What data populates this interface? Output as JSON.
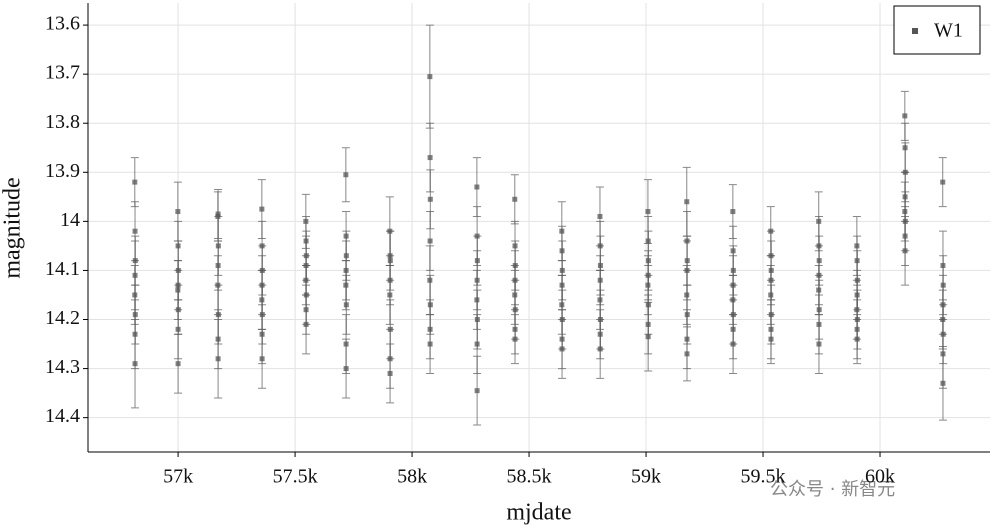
{
  "chart_data": {
    "type": "scatter",
    "x_label": "mjdate",
    "y_label": "magnitude",
    "xlim": [
      56615,
      60470
    ],
    "ylim": [
      13.555,
      14.47
    ],
    "y_inverted": true,
    "grid": true,
    "legend": "upper right",
    "xticks": [
      {
        "value": 57000,
        "label": "57k"
      },
      {
        "value": 57500,
        "label": "57.5k"
      },
      {
        "value": 58000,
        "label": "58k"
      },
      {
        "value": 58500,
        "label": "58.5k"
      },
      {
        "value": 59000,
        "label": "59k"
      },
      {
        "value": 59500,
        "label": "59.5k"
      },
      {
        "value": 60000,
        "label": "60k"
      }
    ],
    "yticks": [
      13.6,
      13.7,
      13.8,
      13.9,
      14,
      14.1,
      14.2,
      14.3,
      14.4
    ],
    "series": [
      {
        "name": "W1",
        "color": "#555555",
        "x": [
          56815,
          56816,
          56817,
          56816,
          56815,
          56817,
          56816,
          56816,
          56999,
          57000,
          57001,
          57000,
          56999,
          57001,
          57000,
          57000,
          57170,
          57171,
          57172,
          57171,
          57170,
          57172,
          57171,
          57171,
          57358,
          57359,
          57360,
          57359,
          57358,
          57360,
          57359,
          57359,
          57546,
          57547,
          57548,
          57547,
          57546,
          57548,
          57547,
          57547,
          57717,
          57718,
          57719,
          57718,
          57717,
          57719,
          57718,
          57718,
          57905,
          57906,
          57907,
          57906,
          57905,
          57907,
          57906,
          57906,
          58076,
          58077,
          58078,
          58077,
          58076,
          58078,
          58077,
          58077,
          58277,
          58278,
          58279,
          58278,
          58277,
          58279,
          58278,
          58278,
          58439,
          58440,
          58441,
          58440,
          58439,
          58441,
          58440,
          58440,
          58640,
          58641,
          58642,
          58641,
          58640,
          58642,
          58641,
          58641,
          58803,
          58804,
          58805,
          58804,
          58803,
          58805,
          58804,
          58804,
          59008,
          59009,
          59010,
          59009,
          59008,
          59010,
          59009,
          59009,
          59174,
          59175,
          59176,
          59175,
          59174,
          59176,
          59175,
          59175,
          59371,
          59372,
          59373,
          59372,
          59371,
          59373,
          59372,
          59372,
          59533,
          59534,
          59535,
          59534,
          59533,
          59535,
          59534,
          59534,
          59738,
          59739,
          59740,
          59739,
          59738,
          59740,
          59739,
          59739,
          59901,
          59902,
          59903,
          59902,
          59901,
          59903,
          59902,
          59902,
          60106,
          60107,
          60108,
          60107,
          60106,
          60108,
          60107,
          60107,
          60268,
          60269,
          60270,
          60269,
          60268,
          60270,
          60269,
          60269
        ],
        "values": [
          13.92,
          14.02,
          14.08,
          14.11,
          14.15,
          14.19,
          14.23,
          14.29,
          13.98,
          14.05,
          14.1,
          14.13,
          14.14,
          14.18,
          14.22,
          14.29,
          13.99,
          13.985,
          14.05,
          14.09,
          14.13,
          14.19,
          14.24,
          14.28,
          13.975,
          14.05,
          14.1,
          14.13,
          14.16,
          14.19,
          14.23,
          14.28,
          14.0,
          14.04,
          14.07,
          14.09,
          14.12,
          14.15,
          14.18,
          14.21,
          13.905,
          14.03,
          14.07,
          14.1,
          14.13,
          14.17,
          14.25,
          14.3,
          14.02,
          14.07,
          14.08,
          14.12,
          14.15,
          14.22,
          14.28,
          14.31,
          13.705,
          13.87,
          13.955,
          14.04,
          14.12,
          14.17,
          14.22,
          14.25,
          13.93,
          14.03,
          14.08,
          14.12,
          14.16,
          14.2,
          14.25,
          14.345,
          13.955,
          14.05,
          14.09,
          14.12,
          14.15,
          14.18,
          14.22,
          14.24,
          14.02,
          14.06,
          14.1,
          14.13,
          14.17,
          14.2,
          14.24,
          14.26,
          13.99,
          14.05,
          14.09,
          14.12,
          14.16,
          14.2,
          14.23,
          14.26,
          13.98,
          14.04,
          14.08,
          14.11,
          14.13,
          14.17,
          14.21,
          14.235,
          13.96,
          14.04,
          14.08,
          14.1,
          14.15,
          14.19,
          14.24,
          14.27,
          13.98,
          14.06,
          14.1,
          14.13,
          14.16,
          14.19,
          14.22,
          14.25,
          14.02,
          14.07,
          14.1,
          14.12,
          14.15,
          14.19,
          14.22,
          14.24,
          14.0,
          14.05,
          14.08,
          14.11,
          14.14,
          14.18,
          14.21,
          14.25,
          14.05,
          14.08,
          14.12,
          14.15,
          14.18,
          14.2,
          14.22,
          14.24,
          13.785,
          13.85,
          13.9,
          13.95,
          13.98,
          14.0,
          14.03,
          14.06,
          13.92,
          14.09,
          14.13,
          14.17,
          14.2,
          14.23,
          14.27,
          14.33
        ],
        "errors": [
          0.05,
          0.06,
          0.05,
          0.07,
          0.06,
          0.06,
          0.07,
          0.09,
          0.06,
          0.05,
          0.06,
          0.05,
          0.06,
          0.05,
          0.06,
          0.06,
          0.05,
          0.05,
          0.06,
          0.05,
          0.06,
          0.06,
          0.06,
          0.08,
          0.06,
          0.05,
          0.05,
          0.06,
          0.06,
          0.06,
          0.06,
          0.06,
          0.055,
          0.05,
          0.05,
          0.06,
          0.05,
          0.06,
          0.05,
          0.06,
          0.055,
          0.05,
          0.05,
          0.06,
          0.05,
          0.06,
          0.06,
          0.06,
          0.07,
          0.05,
          0.06,
          0.05,
          0.06,
          0.06,
          0.06,
          0.06,
          0.105,
          0.07,
          0.06,
          0.06,
          0.07,
          0.06,
          0.06,
          0.06,
          0.06,
          0.06,
          0.05,
          0.06,
          0.06,
          0.06,
          0.06,
          0.07,
          0.05,
          0.05,
          0.05,
          0.06,
          0.06,
          0.06,
          0.05,
          0.05,
          0.06,
          0.05,
          0.06,
          0.05,
          0.06,
          0.06,
          0.06,
          0.06,
          0.06,
          0.05,
          0.06,
          0.05,
          0.06,
          0.06,
          0.05,
          0.06,
          0.065,
          0.05,
          0.06,
          0.05,
          0.06,
          0.06,
          0.06,
          0.07,
          0.07,
          0.06,
          0.05,
          0.06,
          0.06,
          0.06,
          0.06,
          0.055,
          0.055,
          0.05,
          0.05,
          0.06,
          0.05,
          0.06,
          0.06,
          0.06,
          0.05,
          0.05,
          0.06,
          0.05,
          0.06,
          0.06,
          0.06,
          0.05,
          0.06,
          0.06,
          0.05,
          0.06,
          0.05,
          0.06,
          0.06,
          0.06,
          0.06,
          0.05,
          0.06,
          0.05,
          0.06,
          0.06,
          0.06,
          0.05,
          0.05,
          0.05,
          0.06,
          0.05,
          0.06,
          0.06,
          0.06,
          0.07,
          0.05,
          0.07,
          0.06,
          0.06,
          0.06,
          0.06,
          0.07,
          0.075
        ]
      }
    ]
  },
  "watermark": "公众号 · 新智元"
}
